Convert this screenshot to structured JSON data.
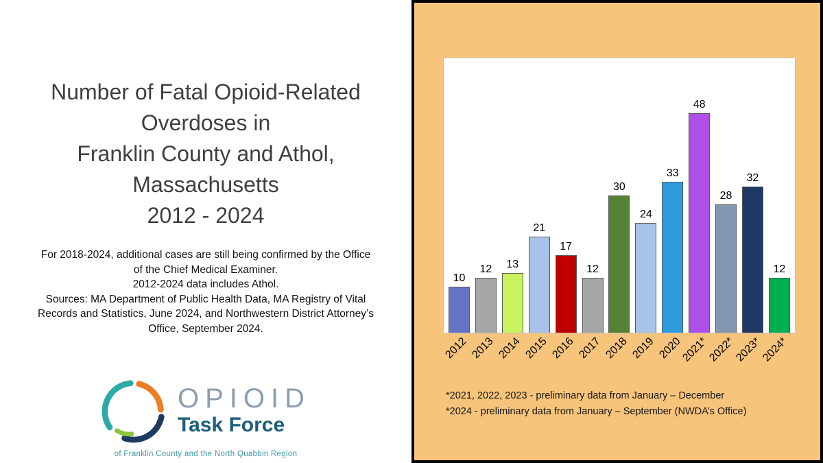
{
  "left": {
    "title_lines": [
      "Number of Fatal Opioid-Related",
      "Overdoses in",
      "Franklin County and Athol,",
      "Massachusetts",
      "2012 - 2024"
    ],
    "notes": "For 2018-2024, additional cases are still being confirmed by the Office of the Chief Medical Examiner.\n2012-2024 data includes Athol.\nSources: MA Department of Public Health Data, MA Registry of Vital Records and Statistics, June 2024, and Northwestern District Attorney’s Office, September 2024.",
    "logo": {
      "wordmark": "OPIOID",
      "subtitle": "Task Force",
      "tagline": "of Franklin County and the North Quabbin Region",
      "colors": {
        "teal": "#2baaa6",
        "orange": "#eb7d23",
        "navy": "#1f3a5f",
        "green": "#8fc43c",
        "wordmark_color": "#8c9daf",
        "subtitle_color": "#1b5e7b",
        "tagline_color": "#3e98a8"
      }
    }
  },
  "chart_data": {
    "type": "bar",
    "title": "Number of Fatal Opioid-Related Overdoses in Franklin County and Athol, Massachusetts 2012 - 2024",
    "categories": [
      "2012",
      "2013",
      "2014",
      "2015",
      "2016",
      "2017",
      "2018",
      "2019",
      "2020",
      "2021*",
      "2022*",
      "2023*",
      "2024*"
    ],
    "values": [
      10,
      12,
      13,
      21,
      17,
      12,
      30,
      24,
      33,
      48,
      28,
      32,
      12
    ],
    "bar_colors": [
      "#6674c4",
      "#a6a6a6",
      "#c9f45f",
      "#a9c3e8",
      "#c00000",
      "#a6a6a6",
      "#548235",
      "#a9c3e8",
      "#2e9bdf",
      "#ae4fe8",
      "#8496b0",
      "#1f3864",
      "#00b050"
    ],
    "xlabel": "",
    "ylabel": "",
    "ylim": [
      0,
      50
    ],
    "grid": false,
    "data_labels": true,
    "legend_position": "none",
    "panel_background": "#f7c47c",
    "footnotes": [
      "*2021, 2022, 2023 - preliminary data from January – December",
      "*2024 - preliminary data from January – September (NWDA’s Office)"
    ]
  }
}
